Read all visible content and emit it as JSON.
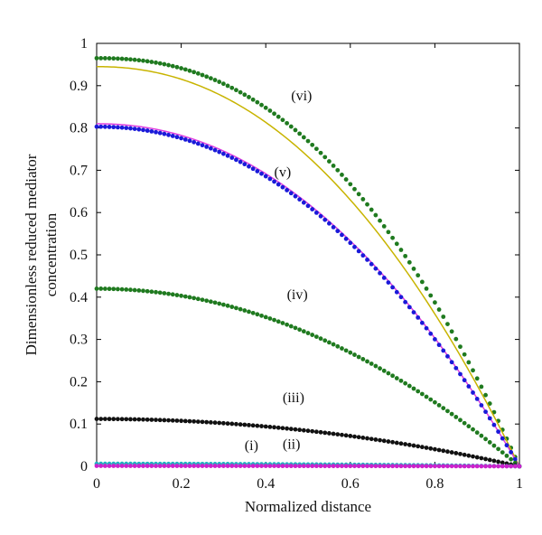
{
  "chart_data": {
    "type": "line",
    "title": "",
    "xlabel": "Normalized distance",
    "ylabel_lines": [
      "Dimensionless reduced mediator",
      "concentration"
    ],
    "xlim": [
      0,
      1
    ],
    "ylim": [
      0,
      1
    ],
    "x_ticks": [
      "0",
      "0.2",
      "0.4",
      "0.6",
      "0.8",
      "1"
    ],
    "y_ticks": [
      "0",
      "0.1",
      "0.2",
      "0.3",
      "0.4",
      "0.5",
      "0.6",
      "0.7",
      "0.8",
      "0.9",
      "1"
    ],
    "grid": false,
    "legend": "none",
    "series": [
      {
        "label": "(vi)",
        "style": "dots",
        "color": "#1f7a1f",
        "peak": 0.965,
        "exponent": 2.3,
        "label_at": [
          0.46,
          0.865
        ]
      },
      {
        "label": "",
        "style": "line",
        "color": "#c8b400",
        "peak": 0.945,
        "exponent": 2.15,
        "label_at": null
      },
      {
        "label": "",
        "style": "line",
        "color": "#e040e0",
        "peak": 0.81,
        "exponent": 2.1,
        "label_at": null
      },
      {
        "label": "(v)",
        "style": "dots",
        "color": "#1a1ad9",
        "peak": 0.803,
        "exponent": 2.1,
        "label_at": [
          0.42,
          0.685
        ]
      },
      {
        "label": "(iv)",
        "style": "dots",
        "color": "#1f7a1f",
        "peak": 0.42,
        "exponent": 2.0,
        "label_at": [
          0.45,
          0.395
        ]
      },
      {
        "label": "(iii)",
        "style": "dots",
        "color": "#111111",
        "peak": 0.112,
        "exponent": 2.0,
        "label_at": [
          0.44,
          0.152
        ]
      },
      {
        "label": "(ii)",
        "style": "dots",
        "color": "#20b0c0",
        "peak": 0.006,
        "exponent": 2.0,
        "label_at": [
          0.44,
          0.042
        ]
      },
      {
        "label": "(i)",
        "style": "dots",
        "color": "#cc22cc",
        "peak": 0.001,
        "exponent": 2.0,
        "label_at": [
          0.35,
          0.038
        ]
      }
    ]
  }
}
